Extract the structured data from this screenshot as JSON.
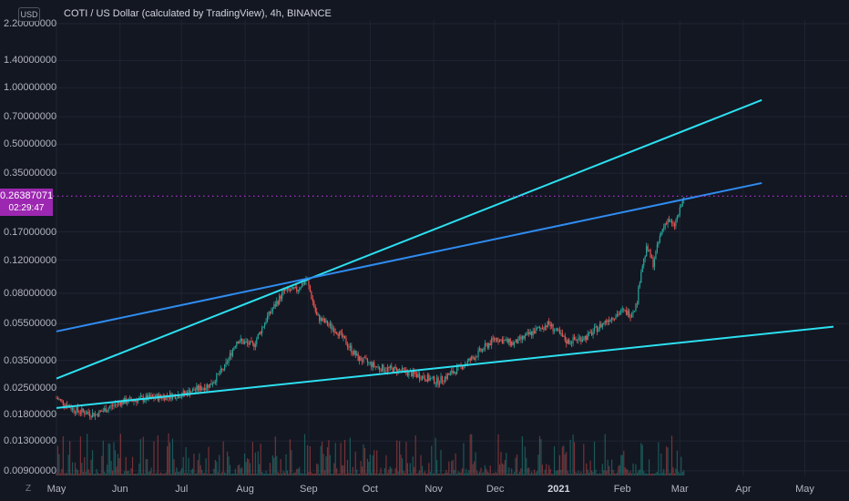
{
  "header": {
    "title": "COTI / US Dollar (calculated by TradingView), 4h, BINANCE",
    "currency_badge": "USD"
  },
  "last_price": {
    "value": "0.26387071",
    "countdown": "02:29:47",
    "color": "#9c27b0"
  },
  "footer": {
    "z_label": "Z"
  },
  "colors": {
    "background": "#131722",
    "up": "#26a69a",
    "down": "#ef5350",
    "trendline_cyan": "#2ce0f0",
    "trendline_blue": "#2f8cf0",
    "price_line": "#c12fe0"
  },
  "y_axis": {
    "labels": [
      "2.20000000",
      "1.40000000",
      "1.00000000",
      "0.70000000",
      "0.50000000",
      "0.35000000",
      "0.17000000",
      "0.12000000",
      "0.08000000",
      "0.05500000",
      "0.03500000",
      "0.02500000",
      "0.01800000",
      "0.01300000",
      "0.00900000"
    ]
  },
  "x_axis": {
    "labels": [
      {
        "text": "May",
        "bold": false
      },
      {
        "text": "Jun",
        "bold": false
      },
      {
        "text": "Jul",
        "bold": false
      },
      {
        "text": "Aug",
        "bold": false
      },
      {
        "text": "Sep",
        "bold": false
      },
      {
        "text": "Oct",
        "bold": false
      },
      {
        "text": "Nov",
        "bold": false
      },
      {
        "text": "Dec",
        "bold": false
      },
      {
        "text": "2021",
        "bold": true
      },
      {
        "text": "Feb",
        "bold": false
      },
      {
        "text": "Mar",
        "bold": false
      },
      {
        "text": "Apr",
        "bold": false
      },
      {
        "text": "May",
        "bold": false
      }
    ]
  },
  "chart_data": {
    "type": "line",
    "scale": "log",
    "grid": true,
    "ylim": [
      0.0085,
      2.3
    ],
    "xlim": [
      "2020-05-01",
      "2021-05-15"
    ],
    "series": [
      {
        "values": [
          [
            "2020-05-01",
            0.022
          ],
          [
            "2020-05-10",
            0.019
          ],
          [
            "2020-05-20",
            0.018
          ],
          [
            "2020-06-01",
            0.021
          ],
          [
            "2020-06-15",
            0.022
          ],
          [
            "2020-07-01",
            0.023
          ],
          [
            "2020-07-15",
            0.026
          ],
          [
            "2020-07-22",
            0.032
          ],
          [
            "2020-07-28",
            0.045
          ],
          [
            "2020-08-05",
            0.042
          ],
          [
            "2020-08-12",
            0.06
          ],
          [
            "2020-08-20",
            0.082
          ],
          [
            "2020-08-26",
            0.083
          ],
          [
            "2020-08-31",
            0.095
          ],
          [
            "2020-09-05",
            0.06
          ],
          [
            "2020-09-15",
            0.05
          ],
          [
            "2020-09-25",
            0.036
          ],
          [
            "2020-10-05",
            0.032
          ],
          [
            "2020-10-15",
            0.031
          ],
          [
            "2020-10-25",
            0.029
          ],
          [
            "2020-11-03",
            0.027
          ],
          [
            "2020-11-10",
            0.03
          ],
          [
            "2020-11-20",
            0.036
          ],
          [
            "2020-12-01",
            0.046
          ],
          [
            "2020-12-10",
            0.043
          ],
          [
            "2020-12-20",
            0.05
          ],
          [
            "2020-12-27",
            0.055
          ],
          [
            "2021-01-05",
            0.044
          ],
          [
            "2021-01-15",
            0.047
          ],
          [
            "2021-01-25",
            0.058
          ],
          [
            "2021-02-01",
            0.064
          ],
          [
            "2021-02-05",
            0.062
          ],
          [
            "2021-02-08",
            0.07
          ],
          [
            "2021-02-10",
            0.105
          ],
          [
            "2021-02-13",
            0.14
          ],
          [
            "2021-02-16",
            0.115
          ],
          [
            "2021-02-20",
            0.17
          ],
          [
            "2021-02-23",
            0.2
          ],
          [
            "2021-02-26",
            0.18
          ],
          [
            "2021-03-01",
            0.22
          ],
          [
            "2021-03-03",
            0.264
          ]
        ]
      }
    ],
    "trendlines": [
      {
        "color": "cyan",
        "from": [
          "2020-05-01",
          0.0195
        ],
        "to": [
          "2021-05-15",
          0.053
        ]
      },
      {
        "color": "cyan",
        "from": [
          "2020-05-01",
          0.028
        ],
        "to": [
          "2021-04-10",
          0.86
        ]
      },
      {
        "color": "blue",
        "from": [
          "2020-05-01",
          0.05
        ],
        "to": [
          "2021-04-10",
          0.31
        ]
      }
    ],
    "price_line": 0.26387071
  }
}
